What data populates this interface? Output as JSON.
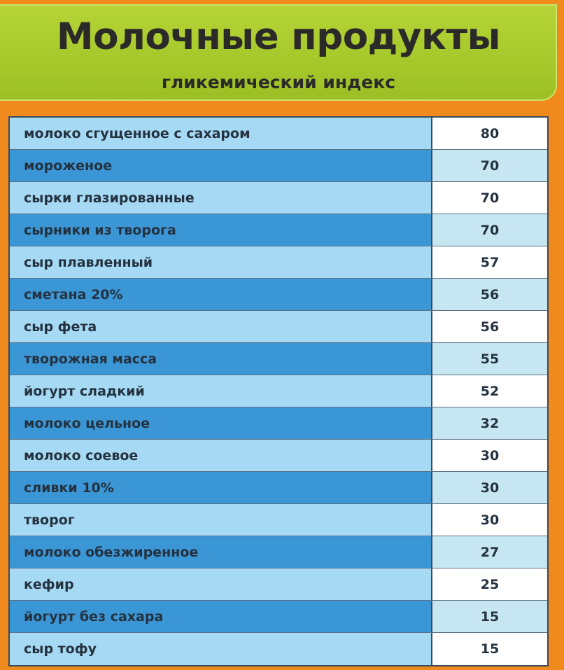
{
  "header": {
    "title": "Молочные продукты",
    "subtitle": "гликемический индекс"
  },
  "rows": [
    {
      "name": "молоко сгущенное с сахаром",
      "value": "80"
    },
    {
      "name": "мороженое",
      "value": "70"
    },
    {
      "name": "сырки глазированные",
      "value": "70"
    },
    {
      "name": "сырники из творога",
      "value": "70"
    },
    {
      "name": "сыр плавленный",
      "value": "57"
    },
    {
      "name": "сметана 20%",
      "value": "56"
    },
    {
      "name": "сыр фета",
      "value": "56"
    },
    {
      "name": "творожная масса",
      "value": "55"
    },
    {
      "name": "йогурт сладкий",
      "value": "52"
    },
    {
      "name": "молоко цельное",
      "value": "32"
    },
    {
      "name": "молоко соевое",
      "value": "30"
    },
    {
      "name": "сливки 10%",
      "value": "30"
    },
    {
      "name": "творог",
      "value": "30"
    },
    {
      "name": "молоко обезжиренное",
      "value": "27"
    },
    {
      "name": "кефир",
      "value": "25"
    },
    {
      "name": "йогурт без сахара",
      "value": "15"
    },
    {
      "name": "сыр тофу",
      "value": "15"
    }
  ]
}
